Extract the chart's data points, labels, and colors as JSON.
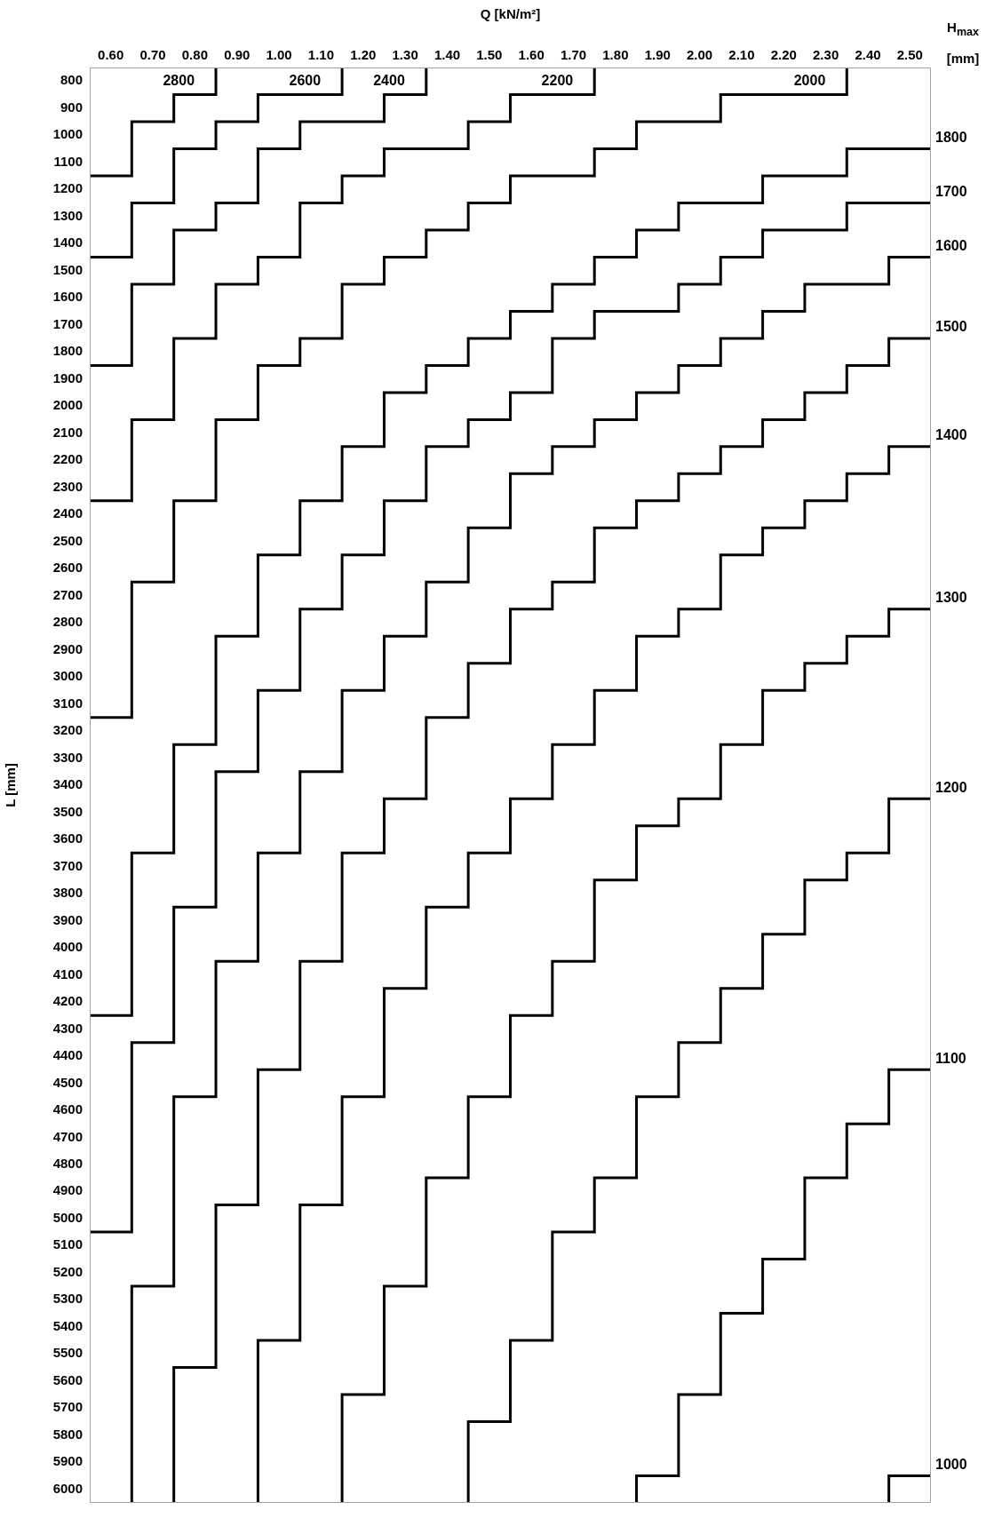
{
  "chart_data": {
    "type": "step",
    "xlabel": "Q [kN/m²]",
    "ylabel": "L [mm]",
    "legend_title": "H$_{max}$ [mm]",
    "line_style": "solid",
    "xlim": [
      0.55,
      2.55
    ],
    "ylim": [
      6050,
      750
    ],
    "xticks": [
      {
        "value": 0.6,
        "label": "0.60"
      },
      {
        "value": 0.7,
        "label": "0.70"
      },
      {
        "value": 0.8,
        "label": "0.80"
      },
      {
        "value": 0.9,
        "label": "0.90"
      },
      {
        "value": 1.0,
        "label": "1.00"
      },
      {
        "value": 1.1,
        "label": "1.10"
      },
      {
        "value": 1.2,
        "label": "1.20"
      },
      {
        "value": 1.3,
        "label": "1.30"
      },
      {
        "value": 1.4,
        "label": "1.40"
      },
      {
        "value": 1.5,
        "label": "1.50"
      },
      {
        "value": 1.6,
        "label": "1.60"
      },
      {
        "value": 1.7,
        "label": "1.70"
      },
      {
        "value": 1.8,
        "label": "1.80"
      },
      {
        "value": 1.9,
        "label": "1.90"
      },
      {
        "value": 2.0,
        "label": "2.00"
      },
      {
        "value": 2.1,
        "label": "2.10"
      },
      {
        "value": 2.2,
        "label": "2.20"
      },
      {
        "value": 2.3,
        "label": "2.30"
      },
      {
        "value": 2.4,
        "label": "2.40"
      },
      {
        "value": 2.5,
        "label": "2.50"
      }
    ],
    "yticks": [
      800,
      900,
      1000,
      1100,
      1200,
      1300,
      1400,
      1500,
      1600,
      1700,
      1800,
      1900,
      2000,
      2100,
      2200,
      2300,
      2400,
      2500,
      2600,
      2700,
      2800,
      2900,
      3000,
      3100,
      3200,
      3300,
      3400,
      3500,
      3600,
      3700,
      3800,
      3900,
      4000,
      4100,
      4200,
      4300,
      4400,
      4500,
      4600,
      4700,
      4800,
      4900,
      5000,
      5100,
      5200,
      5300,
      5400,
      5500,
      5600,
      5700,
      5800,
      5900,
      6000
    ],
    "series": [
      {
        "name": "2800",
        "color": "#000000",
        "x": [
          0.55,
          0.65,
          0.75,
          0.85
        ],
        "values": [
          1150,
          950,
          850,
          750
        ]
      },
      {
        "name": "2600",
        "color": "#000000",
        "x": [
          0.55,
          0.65,
          0.75,
          0.85,
          0.95,
          1.15
        ],
        "values": [
          1450,
          1250,
          1050,
          950,
          850,
          750
        ]
      },
      {
        "name": "2400",
        "color": "#000000",
        "x": [
          0.55,
          0.65,
          0.75,
          0.85,
          0.95,
          1.05,
          1.25,
          1.35
        ],
        "values": [
          1850,
          1550,
          1350,
          1250,
          1050,
          950,
          850,
          750
        ]
      },
      {
        "name": "2200",
        "color": "#000000",
        "x": [
          0.55,
          0.65,
          0.75,
          0.85,
          0.95,
          1.05,
          1.15,
          1.25,
          1.45,
          1.55,
          1.75
        ],
        "values": [
          2350,
          2050,
          1750,
          1550,
          1450,
          1250,
          1150,
          1050,
          950,
          850,
          750
        ]
      },
      {
        "name": "2000",
        "color": "#000000",
        "x": [
          0.55,
          0.65,
          0.75,
          0.85,
          0.95,
          1.05,
          1.15,
          1.25,
          1.35,
          1.45,
          1.55,
          1.75,
          1.85,
          2.05,
          2.35
        ],
        "values": [
          3150,
          2650,
          2350,
          2050,
          1850,
          1750,
          1550,
          1450,
          1350,
          1250,
          1150,
          1050,
          950,
          850,
          750
        ]
      },
      {
        "name": "1800",
        "color": "#000000",
        "x": [
          0.55,
          0.65,
          0.75,
          0.85,
          0.95,
          1.05,
          1.15,
          1.25,
          1.35,
          1.45,
          1.55,
          1.65,
          1.75,
          1.85,
          1.95,
          2.15,
          2.35,
          2.55
        ],
        "values": [
          4250,
          3650,
          3250,
          2850,
          2550,
          2350,
          2150,
          1950,
          1850,
          1750,
          1650,
          1550,
          1450,
          1350,
          1250,
          1150,
          1050,
          1050
        ]
      },
      {
        "name": "1700",
        "color": "#000000",
        "x": [
          0.55,
          0.65,
          0.75,
          0.85,
          0.95,
          1.05,
          1.15,
          1.25,
          1.35,
          1.45,
          1.55,
          1.65,
          1.75,
          1.95,
          2.05,
          2.15,
          2.35,
          2.55
        ],
        "values": [
          5050,
          4350,
          3850,
          3350,
          3050,
          2750,
          2550,
          2350,
          2150,
          2050,
          1950,
          1750,
          1650,
          1550,
          1450,
          1350,
          1250,
          1250
        ]
      },
      {
        "name": "1600",
        "color": "#000000",
        "x": [
          0.65,
          0.65,
          0.75,
          0.85,
          0.95,
          1.05,
          1.15,
          1.25,
          1.35,
          1.45,
          1.55,
          1.65,
          1.75,
          1.85,
          1.95,
          2.05,
          2.15,
          2.25,
          2.45,
          2.55
        ],
        "values": [
          6050,
          5250,
          4550,
          4050,
          3650,
          3350,
          3050,
          2850,
          2650,
          2450,
          2250,
          2150,
          2050,
          1950,
          1850,
          1750,
          1650,
          1550,
          1450,
          1450
        ]
      },
      {
        "name": "1500",
        "color": "#000000",
        "x": [
          0.75,
          0.75,
          0.85,
          0.95,
          1.05,
          1.15,
          1.25,
          1.35,
          1.45,
          1.55,
          1.65,
          1.75,
          1.85,
          1.95,
          2.05,
          2.15,
          2.25,
          2.35,
          2.45,
          2.55
        ],
        "values": [
          6050,
          5550,
          4950,
          4450,
          4050,
          3650,
          3450,
          3150,
          2950,
          2750,
          2650,
          2450,
          2350,
          2250,
          2150,
          2050,
          1950,
          1850,
          1750,
          1750
        ]
      },
      {
        "name": "1400",
        "color": "#000000",
        "x": [
          0.95,
          0.95,
          1.05,
          1.15,
          1.25,
          1.35,
          1.45,
          1.55,
          1.65,
          1.75,
          1.85,
          1.95,
          2.05,
          2.15,
          2.25,
          2.35,
          2.45,
          2.55
        ],
        "values": [
          6050,
          5450,
          4950,
          4550,
          4150,
          3850,
          3650,
          3450,
          3250,
          3050,
          2850,
          2750,
          2550,
          2450,
          2350,
          2250,
          2150,
          2150
        ]
      },
      {
        "name": "1300",
        "color": "#000000",
        "x": [
          1.15,
          1.15,
          1.25,
          1.35,
          1.45,
          1.55,
          1.65,
          1.75,
          1.85,
          1.95,
          2.05,
          2.15,
          2.25,
          2.35,
          2.45,
          2.55
        ],
        "values": [
          6050,
          5650,
          5250,
          4850,
          4550,
          4250,
          4050,
          3750,
          3550,
          3450,
          3250,
          3050,
          2950,
          2850,
          2750,
          2750
        ]
      },
      {
        "name": "1200",
        "color": "#000000",
        "x": [
          1.45,
          1.45,
          1.55,
          1.65,
          1.75,
          1.85,
          1.95,
          2.05,
          2.15,
          2.25,
          2.35,
          2.45,
          2.55
        ],
        "values": [
          6050,
          5750,
          5450,
          5050,
          4850,
          4550,
          4350,
          4150,
          3950,
          3750,
          3650,
          3450,
          3450
        ]
      },
      {
        "name": "1100",
        "color": "#000000",
        "x": [
          1.85,
          1.85,
          1.95,
          2.05,
          2.15,
          2.25,
          2.35,
          2.45,
          2.55
        ],
        "values": [
          6050,
          5950,
          5650,
          5350,
          5150,
          4850,
          4650,
          4450,
          4450
        ]
      },
      {
        "name": "1000",
        "color": "#000000",
        "x": [
          2.45,
          2.45,
          2.55
        ],
        "values": [
          6050,
          5950,
          5950
        ]
      }
    ]
  }
}
